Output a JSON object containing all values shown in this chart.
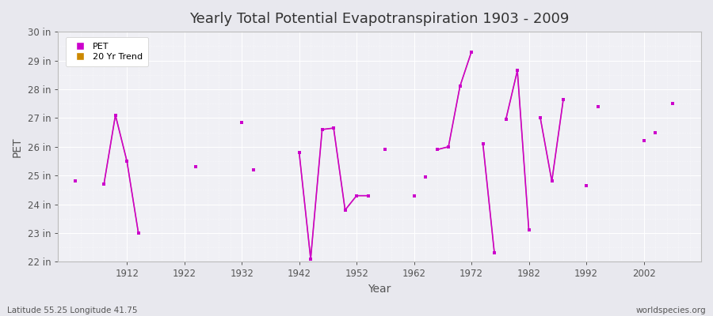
{
  "title": "Yearly Total Potential Evapotranspiration 1903 - 2009",
  "xlabel": "Year",
  "ylabel": "PET",
  "footnote_left": "Latitude 55.25 Longitude 41.75",
  "footnote_right": "worldspecies.org",
  "background_color": "#e8e8ee",
  "plot_bg_color": "#f0f0f5",
  "pet_color": "#cc00cc",
  "trend_color": "#cc8800",
  "ylim": [
    22,
    30
  ],
  "ytick_labels": [
    "22 in",
    "23 in",
    "24 in",
    "25 in",
    "26 in",
    "27 in",
    "28 in",
    "29 in",
    "30 in"
  ],
  "ytick_values": [
    22,
    23,
    24,
    25,
    26,
    27,
    28,
    29,
    30
  ],
  "xlim": [
    1900,
    2012
  ],
  "xtick_values": [
    1912,
    1922,
    1932,
    1942,
    1952,
    1962,
    1972,
    1982,
    1992,
    2002
  ],
  "pet_data": [
    [
      1903,
      24.8
    ],
    [
      1908,
      24.7
    ],
    [
      1910,
      27.1
    ],
    [
      1912,
      25.5
    ],
    [
      1914,
      23.0
    ],
    [
      1924,
      25.3
    ],
    [
      1932,
      26.85
    ],
    [
      1934,
      25.2
    ],
    [
      1942,
      25.8
    ],
    [
      1944,
      22.1
    ],
    [
      1946,
      26.6
    ],
    [
      1948,
      26.65
    ],
    [
      1950,
      23.8
    ],
    [
      1952,
      24.3
    ],
    [
      1954,
      24.3
    ],
    [
      1957,
      25.9
    ],
    [
      1962,
      24.3
    ],
    [
      1964,
      24.95
    ],
    [
      1966,
      25.9
    ],
    [
      1968,
      26.0
    ],
    [
      1970,
      28.1
    ],
    [
      1972,
      29.3
    ],
    [
      1974,
      26.1
    ],
    [
      1976,
      22.3
    ],
    [
      1978,
      26.95
    ],
    [
      1980,
      28.65
    ],
    [
      1982,
      23.1
    ],
    [
      1984,
      27.0
    ],
    [
      1986,
      24.8
    ],
    [
      1988,
      27.65
    ],
    [
      1992,
      24.65
    ],
    [
      1994,
      27.4
    ],
    [
      2002,
      26.2
    ],
    [
      2004,
      26.5
    ],
    [
      2007,
      27.5
    ]
  ],
  "connected_segments": [
    [
      1908,
      1910,
      1912,
      1914
    ],
    [
      1942,
      1944,
      1946,
      1948,
      1950,
      1952,
      1954
    ],
    [
      1966,
      1968,
      1970,
      1972
    ],
    [
      1974,
      1976
    ],
    [
      1978,
      1980,
      1982
    ],
    [
      1984,
      1986,
      1988
    ]
  ],
  "trend_segments": [
    [
      1908,
      1910,
      1912,
      1914
    ],
    [
      1942,
      1944,
      1946,
      1948,
      1950,
      1952,
      1954
    ],
    [
      1966,
      1968,
      1970,
      1972
    ],
    [
      1974,
      1976
    ],
    [
      1978,
      1980,
      1982
    ],
    [
      1984,
      1986,
      1988
    ]
  ]
}
